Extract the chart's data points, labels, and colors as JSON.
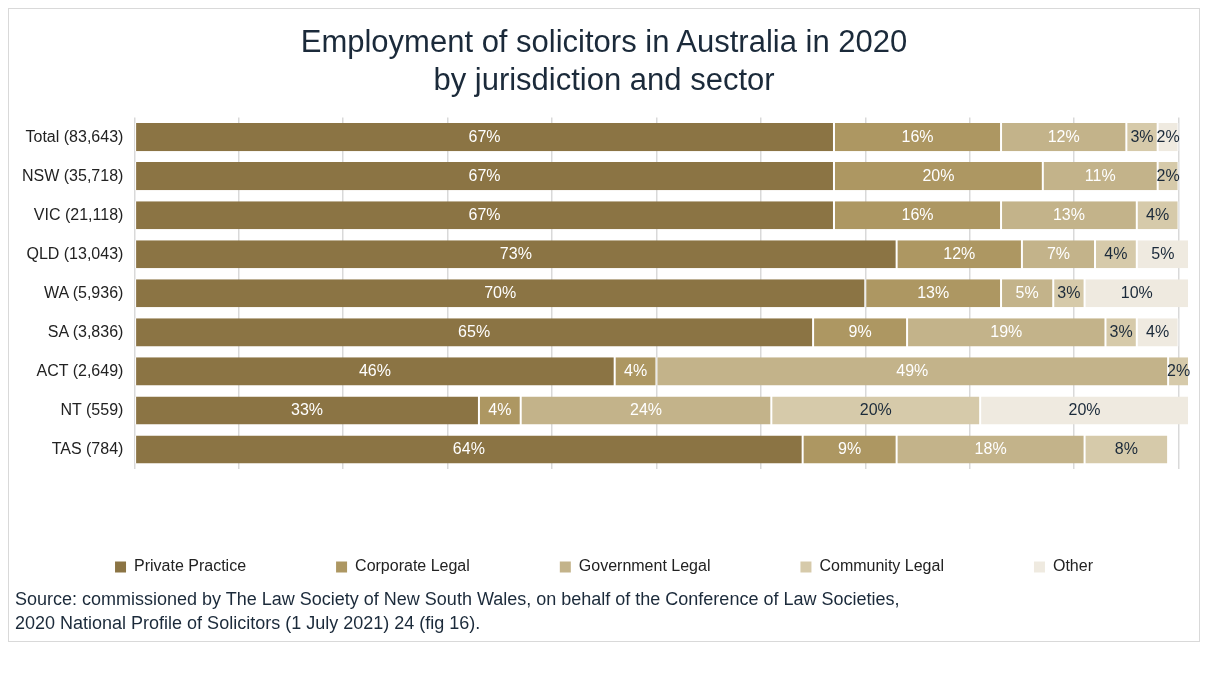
{
  "chart_data": {
    "type": "bar",
    "orientation": "horizontal",
    "stacked": true,
    "title": "Employment of solicitors in Australia in 2020 by jurisdiction and sector",
    "categories": [
      "Total (83,643)",
      "NSW (35,718)",
      "VIC (21,118)",
      "QLD (13,043)",
      "WA (5,936)",
      "SA (3,836)",
      "ACT (2,649)",
      "NT (559)",
      "TAS (784)"
    ],
    "series": [
      {
        "name": "Private Practice",
        "color": "#8b7444",
        "values": [
          67,
          67,
          67,
          73,
          70,
          65,
          46,
          33,
          64
        ],
        "value_labels": [
          "67%",
          "67%",
          "67%",
          "73%",
          "70%",
          "65%",
          "46%",
          "33%",
          "64%"
        ]
      },
      {
        "name": "Corporate Legal",
        "color": "#ad9762",
        "values": [
          16,
          20,
          16,
          12,
          13,
          9,
          4,
          4,
          9
        ],
        "value_labels": [
          "16%",
          "20%",
          "16%",
          "12%",
          "13%",
          "9%",
          "4%",
          "4%",
          "9%"
        ]
      },
      {
        "name": "Government Legal",
        "color": "#c3b38a",
        "values": [
          12,
          11,
          13,
          7,
          5,
          19,
          49,
          24,
          18
        ],
        "value_labels": [
          "12%",
          "11%",
          "13%",
          "7%",
          "5%",
          "19%",
          "49%",
          "24%",
          "18%"
        ]
      },
      {
        "name": "Community Legal",
        "color": "#d6caaa",
        "values": [
          3,
          2,
          4,
          4,
          3,
          3,
          2,
          20,
          8
        ],
        "value_labels": [
          "3%",
          "2%",
          "4%",
          "4%",
          "3%",
          "3%",
          "2%",
          "20%",
          "8%"
        ]
      },
      {
        "name": "Other",
        "color": "#efeae0",
        "values": [
          2,
          null,
          null,
          5,
          10,
          4,
          null,
          20,
          null
        ],
        "value_labels": [
          "2%",
          null,
          null,
          "5%",
          "10%",
          "4%",
          null,
          "20%",
          null
        ]
      }
    ],
    "xlim": [
      0,
      101
    ],
    "xticks": [
      {
        "value": 0,
        "label": null
      },
      {
        "value": 10,
        "label": null
      },
      {
        "value": 20,
        "label": null
      },
      {
        "value": 30,
        "label": null
      },
      {
        "value": 40,
        "label": null
      },
      {
        "value": 50,
        "label": null
      },
      {
        "value": 60,
        "label": null
      },
      {
        "value": 70,
        "label": null
      },
      {
        "value": 80,
        "label": null
      },
      {
        "value": 90,
        "label": null
      },
      {
        "value": 100,
        "label": null
      }
    ],
    "tick_labels": "y",
    "grid": "x",
    "legend": "bottom",
    "annotations": [
      "Source: commissioned by The Law Society of New South Wales, on behalf of the Conference of Law Societies,",
      "2020 National Profile of Solicitors (1 July 2021) 24 (fig 16)."
    ]
  }
}
